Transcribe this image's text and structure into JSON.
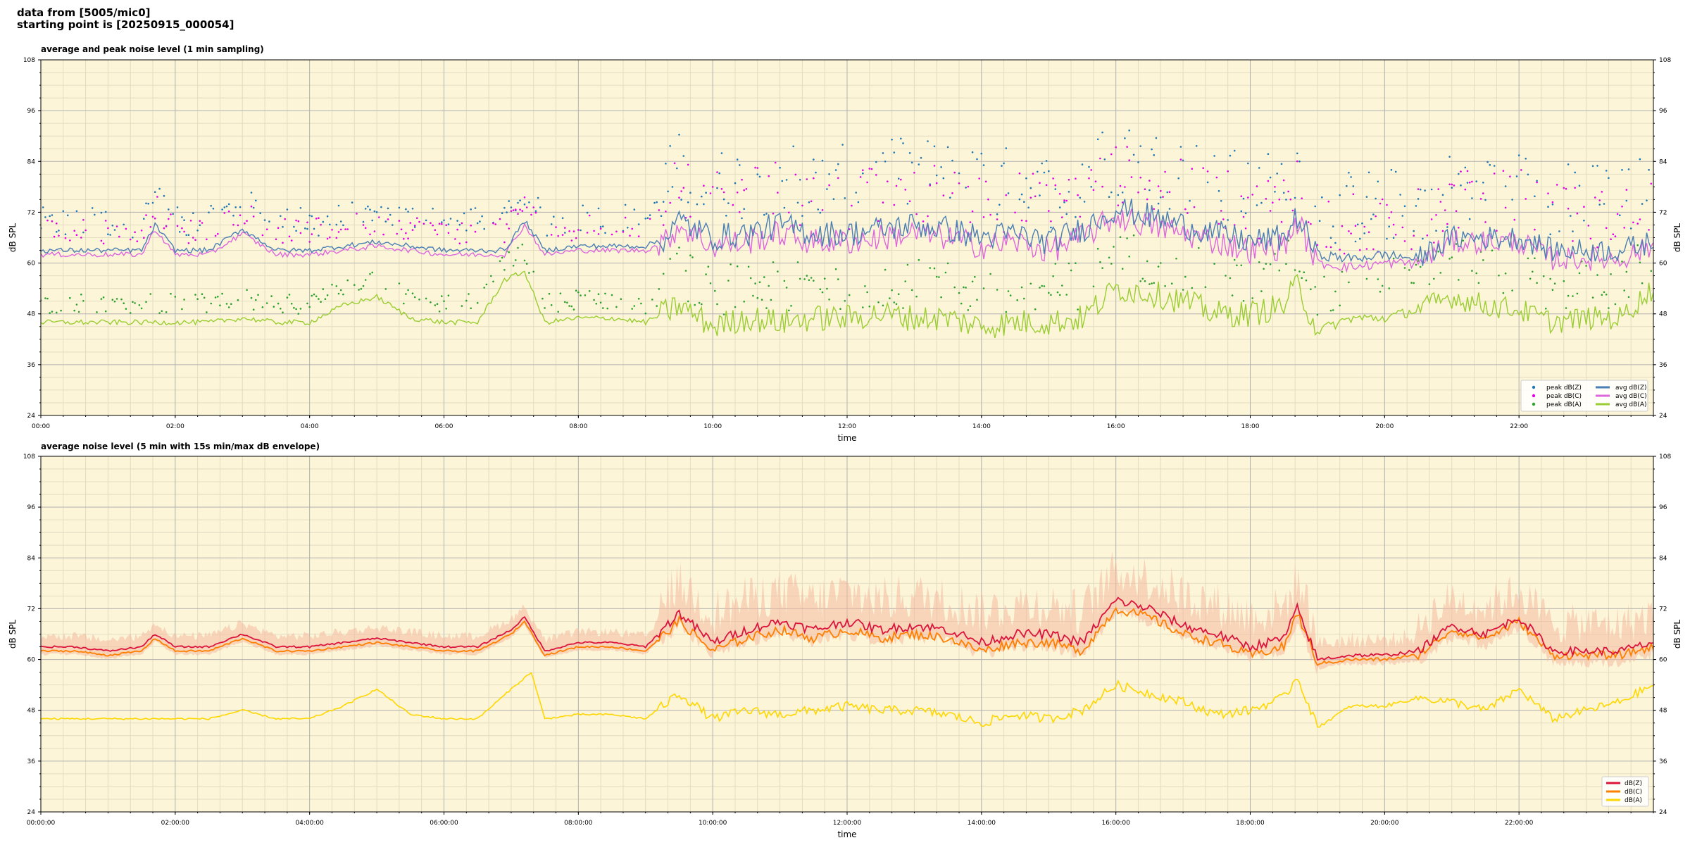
{
  "header": {
    "line1": "data from [5005/mic0]",
    "line2": "starting point is [20250915_000054]"
  },
  "colors": {
    "background": "#fdf5d8",
    "grid_major": "#b0b0b0",
    "grid_minor": "#e3dcc2",
    "peak_z": "#1f77b4",
    "peak_c": "#e600e6",
    "peak_a": "#2ca02c",
    "avg_z": "#4a7fb5",
    "avg_c": "#dd66dd",
    "avg_a": "#9acd32",
    "env": "#f4b8a0",
    "dbz": "#dc143c",
    "dbc": "#ff8000",
    "dba": "#ffd700"
  },
  "chart_data": [
    {
      "id": "top",
      "type": "line",
      "title": "average and peak noise level (1 min sampling)",
      "xlabel": "time",
      "ylabel": "dB SPL",
      "ylim": [
        24,
        108
      ],
      "yticks": [
        24,
        36,
        48,
        60,
        72,
        84,
        96,
        108
      ],
      "xlim_hours": [
        0,
        24
      ],
      "xtick_labels": [
        "00:00",
        "02:00",
        "04:00",
        "06:00",
        "08:00",
        "10:00",
        "12:00",
        "14:00",
        "16:00",
        "18:00",
        "20:00",
        "22:00"
      ],
      "grid": true,
      "legend_position": "lower-right",
      "legend": [
        "peak dB(Z)",
        "peak dB(C)",
        "peak dB(A)",
        "avg dB(Z)",
        "avg dB(C)",
        "avg dB(A)"
      ],
      "series": [
        {
          "name": "avg dB(Z)",
          "x_hours": [
            0,
            0.5,
            1,
            1.5,
            1.7,
            2,
            2.5,
            3,
            3.5,
            4,
            4.5,
            5,
            5.5,
            6,
            6.5,
            6.9,
            7.2,
            7.5,
            8,
            8.5,
            9,
            9.3,
            9.5,
            10,
            10.5,
            11,
            11.5,
            12,
            12.5,
            13,
            13.5,
            14,
            14.5,
            15,
            15.5,
            16,
            16.5,
            17,
            17.5,
            18,
            18.5,
            18.7,
            19,
            19.5,
            20,
            20.5,
            21,
            21.5,
            22,
            22.5,
            23,
            23.5,
            24
          ],
          "values": [
            63,
            63,
            63,
            63,
            69,
            63,
            63,
            68,
            63,
            63,
            64,
            65,
            64,
            63,
            63,
            63,
            70,
            63,
            64,
            64,
            64,
            66,
            70,
            66,
            67,
            69,
            67,
            67,
            68,
            69,
            68,
            66,
            67,
            65,
            68,
            73,
            71,
            69,
            67,
            65,
            66,
            71,
            62,
            61,
            62,
            61,
            66,
            66,
            66,
            63,
            63,
            63,
            65
          ]
        },
        {
          "name": "avg dB(C)",
          "x_hours": [
            0,
            0.5,
            1,
            1.5,
            1.7,
            2,
            2.5,
            3,
            3.5,
            4,
            4.5,
            5,
            5.5,
            6,
            6.5,
            6.9,
            7.2,
            7.5,
            8,
            8.5,
            9,
            9.3,
            9.5,
            10,
            10.5,
            11,
            11.5,
            12,
            12.5,
            13,
            13.5,
            14,
            14.5,
            15,
            15.5,
            16,
            16.5,
            17,
            17.5,
            18,
            18.5,
            18.7,
            19,
            19.5,
            20,
            20.5,
            21,
            21.5,
            22,
            22.5,
            23,
            23.5,
            24
          ],
          "values": [
            62,
            62,
            62,
            62,
            68,
            62,
            62,
            67,
            62,
            62,
            63,
            64,
            63,
            62,
            62,
            62,
            69,
            62,
            63,
            63,
            63,
            65,
            69,
            64,
            65,
            67,
            65,
            65,
            66,
            67,
            66,
            64,
            65,
            63,
            66,
            71,
            69,
            67,
            65,
            63,
            64,
            70,
            60,
            59,
            60,
            60,
            65,
            65,
            65,
            61,
            61,
            61,
            64
          ]
        },
        {
          "name": "avg dB(A)",
          "x_hours": [
            0,
            0.5,
            1,
            1.5,
            2,
            2.5,
            3,
            3.5,
            4,
            4.5,
            5,
            5.5,
            6,
            6.5,
            6.9,
            7.2,
            7.5,
            8,
            8.5,
            9,
            9.5,
            10,
            10.5,
            11,
            11.5,
            12,
            12.5,
            13,
            13.5,
            14,
            14.5,
            15,
            15.5,
            16,
            16.5,
            17,
            17.5,
            18,
            18.5,
            18.7,
            19,
            19.5,
            20,
            20.5,
            21,
            21.5,
            22,
            22.5,
            23,
            23.5,
            24
          ],
          "values": [
            46,
            46,
            46,
            46,
            46,
            46,
            47,
            46,
            46,
            50,
            52,
            47,
            46,
            46,
            56,
            58,
            46,
            47,
            47,
            46,
            50,
            45,
            47,
            46,
            47,
            47,
            48,
            47,
            47,
            45,
            46,
            46,
            47,
            54,
            53,
            51,
            48,
            48,
            50,
            55,
            44,
            47,
            47,
            49,
            52,
            50,
            49,
            46,
            47,
            47,
            54
          ]
        },
        {
          "name": "peak dB(Z)",
          "type": "scatter",
          "marker": "dots",
          "note": "scattered 1-min peak markers above avg dB(Z)"
        },
        {
          "name": "peak dB(C)",
          "type": "scatter",
          "marker": "dots",
          "note": "scattered 1-min peak markers above avg dB(C)"
        },
        {
          "name": "peak dB(A)",
          "type": "scatter",
          "marker": "dots",
          "note": "scattered 1-min peak markers above avg dB(A)"
        }
      ]
    },
    {
      "id": "bottom",
      "type": "line",
      "title": "average noise level (5 min with 15s min/max dB envelope)",
      "xlabel": "time",
      "ylabel": "dB SPL",
      "ylim": [
        24,
        108
      ],
      "yticks": [
        24,
        36,
        48,
        60,
        72,
        84,
        96,
        108
      ],
      "xlim_hours": [
        0,
        24
      ],
      "xtick_labels": [
        "00:00:00",
        "02:00:00",
        "04:00:00",
        "06:00:00",
        "08:00:00",
        "10:00:00",
        "12:00:00",
        "14:00:00",
        "16:00:00",
        "18:00:00",
        "20:00:00",
        "22:00:00"
      ],
      "grid": true,
      "legend_position": "lower-right",
      "legend": [
        "dB(Z)",
        "dB(C)",
        "dB(A)"
      ],
      "series": [
        {
          "name": "dB(Z)",
          "x_hours": [
            0,
            0.5,
            1,
            1.5,
            1.7,
            2,
            2.5,
            3,
            3.5,
            4,
            4.5,
            5,
            5.5,
            6,
            6.5,
            7,
            7.2,
            7.5,
            8,
            8.5,
            9,
            9.5,
            10,
            10.5,
            11,
            11.5,
            12,
            12.5,
            13,
            13.5,
            14,
            14.5,
            15,
            15.5,
            16,
            16.5,
            17,
            17.5,
            18,
            18.5,
            18.7,
            19,
            19.5,
            20,
            20.5,
            21,
            21.5,
            22,
            22.5,
            23,
            23.5,
            24
          ],
          "values": [
            63,
            63,
            62,
            63,
            66,
            63,
            63,
            66,
            63,
            63,
            64,
            65,
            64,
            63,
            63,
            67,
            70,
            62,
            64,
            64,
            63,
            71,
            64,
            67,
            69,
            67,
            69,
            67,
            68,
            67,
            64,
            66,
            66,
            64,
            74,
            72,
            68,
            66,
            63,
            65,
            72,
            60,
            61,
            61,
            62,
            68,
            66,
            70,
            62,
            62,
            62,
            64
          ]
        },
        {
          "name": "dB(C)",
          "x_hours": [
            0,
            0.5,
            1,
            1.5,
            1.7,
            2,
            2.5,
            3,
            3.5,
            4,
            4.5,
            5,
            5.5,
            6,
            6.5,
            7,
            7.2,
            7.5,
            8,
            8.5,
            9,
            9.5,
            10,
            10.5,
            11,
            11.5,
            12,
            12.5,
            13,
            13.5,
            14,
            14.5,
            15,
            15.5,
            16,
            16.5,
            17,
            17.5,
            18,
            18.5,
            18.7,
            19,
            19.5,
            20,
            20.5,
            21,
            21.5,
            22,
            22.5,
            23,
            23.5,
            24
          ],
          "values": [
            62,
            62,
            61,
            62,
            65,
            62,
            62,
            65,
            62,
            62,
            63,
            64,
            63,
            62,
            62,
            66,
            69,
            61,
            63,
            63,
            62,
            69,
            62,
            65,
            67,
            65,
            67,
            65,
            66,
            65,
            62,
            64,
            64,
            62,
            72,
            70,
            66,
            64,
            61,
            63,
            71,
            59,
            60,
            60,
            61,
            67,
            65,
            69,
            61,
            61,
            61,
            63
          ]
        },
        {
          "name": "dB(A)",
          "x_hours": [
            0,
            0.5,
            1,
            1.5,
            2,
            2.5,
            3,
            3.5,
            4,
            4.5,
            5,
            5.5,
            6,
            6.5,
            7,
            7.3,
            7.5,
            8,
            8.5,
            9,
            9.5,
            10,
            10.5,
            11,
            11.5,
            12,
            12.5,
            13,
            13.5,
            14,
            14.5,
            15,
            15.5,
            16,
            16.5,
            17,
            17.5,
            18,
            18.5,
            18.7,
            19,
            19.5,
            20,
            20.5,
            21,
            21.5,
            22,
            22.5,
            23,
            23.5,
            24
          ],
          "values": [
            46,
            46,
            46,
            46,
            46,
            46,
            48,
            46,
            46,
            49,
            53,
            47,
            46,
            46,
            53,
            57,
            46,
            47,
            47,
            46,
            52,
            46,
            48,
            47,
            48,
            49,
            48,
            48,
            47,
            45,
            47,
            46,
            48,
            54,
            52,
            50,
            47,
            48,
            51,
            56,
            44,
            49,
            49,
            51,
            50,
            48,
            53,
            46,
            48,
            50,
            54
          ]
        },
        {
          "name": "min/max envelope",
          "type": "area",
          "note": "15s min/max dB envelope band around dB(Z)"
        }
      ]
    }
  ]
}
